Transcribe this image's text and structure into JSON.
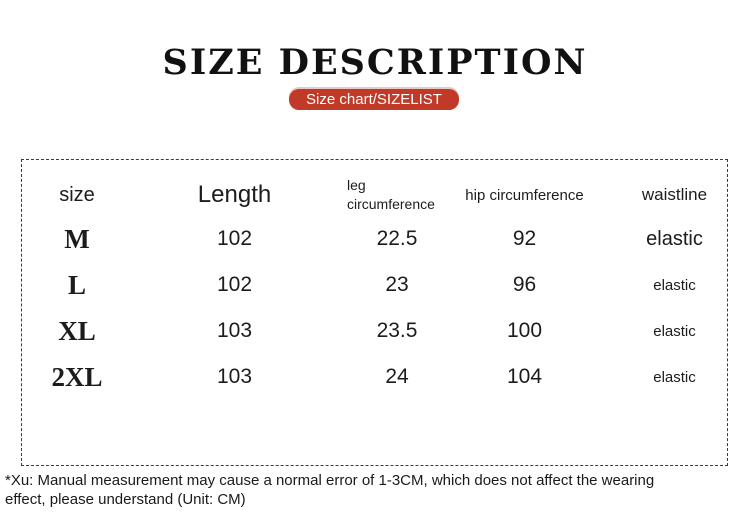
{
  "header": {
    "title": "SIZE DESCRIPTION",
    "badge_label": "Size chart/SIZELIST"
  },
  "size_table": {
    "columns": [
      "size",
      "Length",
      "leg circumference",
      "hip circumference",
      "waistline"
    ],
    "rows": [
      {
        "size": "M",
        "length": "102",
        "leg_circumference": "22.5",
        "hip_circumference": "92",
        "waistline": "elastic"
      },
      {
        "size": "L",
        "length": "102",
        "leg_circumference": "23",
        "hip_circumference": "96",
        "waistline": "elastic"
      },
      {
        "size": "XL",
        "length": "103",
        "leg_circumference": "23.5",
        "hip_circumference": "100",
        "waistline": "elastic"
      },
      {
        "size": "2XL",
        "length": "103",
        "leg_circumference": "24",
        "hip_circumference": "104",
        "waistline": "elastic"
      }
    ]
  },
  "footnote": {
    "line1": "*Xu: Manual measurement may cause a normal error of 1-3CM, which does not affect the wearing",
    "line2": "effect, please understand (Unit: CM)"
  },
  "colors": {
    "badge_red": "#c13a27",
    "text_black": "#1c1c1c"
  }
}
